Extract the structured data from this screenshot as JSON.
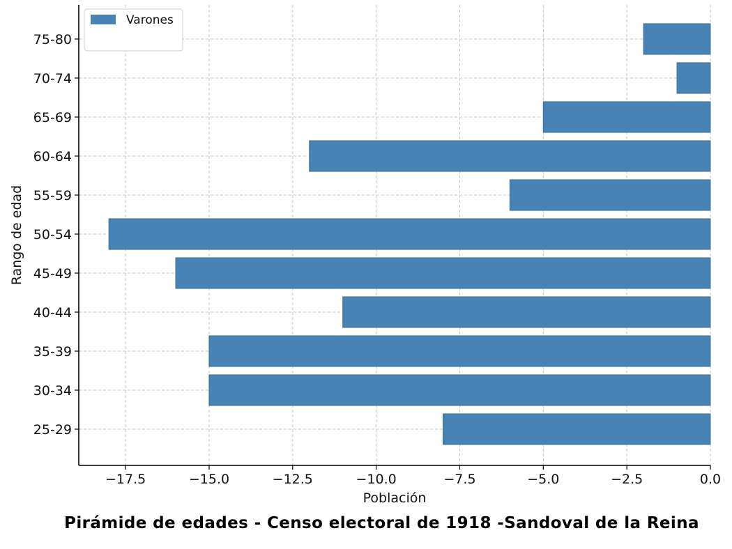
{
  "chart_data": {
    "type": "bar",
    "orientation": "horizontal",
    "title": "Pirámide de edades - Censo electoral de 1918 -Sandoval de la Reina",
    "xlabel": "Población",
    "ylabel": "Rango de edad",
    "categories": [
      "25-29",
      "30-34",
      "35-39",
      "40-44",
      "45-49",
      "50-54",
      "55-59",
      "60-64",
      "65-69",
      "70-74",
      "75-80"
    ],
    "series": [
      {
        "name": "Varones",
        "color": "#4682b4",
        "values": [
          -8,
          -15,
          -15,
          -11,
          -16,
          -18,
          -6,
          -12,
          -5,
          -1,
          -2
        ]
      }
    ],
    "xlim": [
      -18.9,
      0
    ],
    "xticks": [
      -17.5,
      -15.0,
      -12.5,
      -10.0,
      -7.5,
      -5.0,
      -2.5,
      0.0
    ],
    "xtick_labels": [
      "−17.5",
      "−15.0",
      "−12.5",
      "−10.0",
      "−7.5",
      "−5.0",
      "−2.5",
      "0.0"
    ],
    "grid": true,
    "legend": "top-left"
  }
}
